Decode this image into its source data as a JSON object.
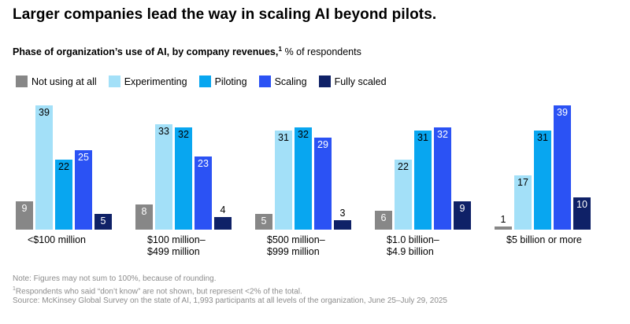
{
  "header": {
    "title": "Larger companies lead the way in scaling AI beyond pilots.",
    "subtitle_bold": "Phase of organization’s use of AI, by company revenues,",
    "subtitle_footnote_marker": "1",
    "subtitle_regular": " % of respondents"
  },
  "chart_data": {
    "type": "bar",
    "title": "Phase of organization’s use of AI, by company revenues, % of respondents",
    "legend_position": "top",
    "grid": false,
    "axes_hidden": true,
    "ylim": [
      0,
      40
    ],
    "categories": [
      "<$100 million",
      "$100 million–\n$499 million",
      "$500 million–\n$999 million",
      "$1.0 billion–\n$4.9 billion",
      "$5 billion or more"
    ],
    "series": [
      {
        "name": "Not using at all",
        "color": "#878787",
        "label_color": "#ffffff",
        "values": [
          9,
          8,
          5,
          6,
          1
        ]
      },
      {
        "name": "Experimenting",
        "color": "#A3E0F8",
        "label_color": "#000000",
        "values": [
          39,
          33,
          31,
          22,
          17
        ]
      },
      {
        "name": "Piloting",
        "color": "#08A6F0",
        "label_color": "#000000",
        "values": [
          22,
          32,
          32,
          31,
          31
        ]
      },
      {
        "name": "Scaling",
        "color": "#2B52F4",
        "label_color": "#ffffff",
        "values": [
          25,
          23,
          29,
          32,
          39
        ]
      },
      {
        "name": "Fully scaled",
        "color": "#0F2167",
        "label_color": "#ffffff",
        "values": [
          5,
          4,
          3,
          9,
          10
        ]
      }
    ]
  },
  "notes": {
    "note": "Note: Figures may not sum to 100%, because of rounding.",
    "footnote_marker": "1",
    "footnote": "Respondents who said “don’t know” are not shown, but represent <2% of the total.",
    "source": "Source: McKinsey Global Survey on the state of AI, 1,993 participants at all levels of the organization, June 25–July 29, 2025"
  }
}
